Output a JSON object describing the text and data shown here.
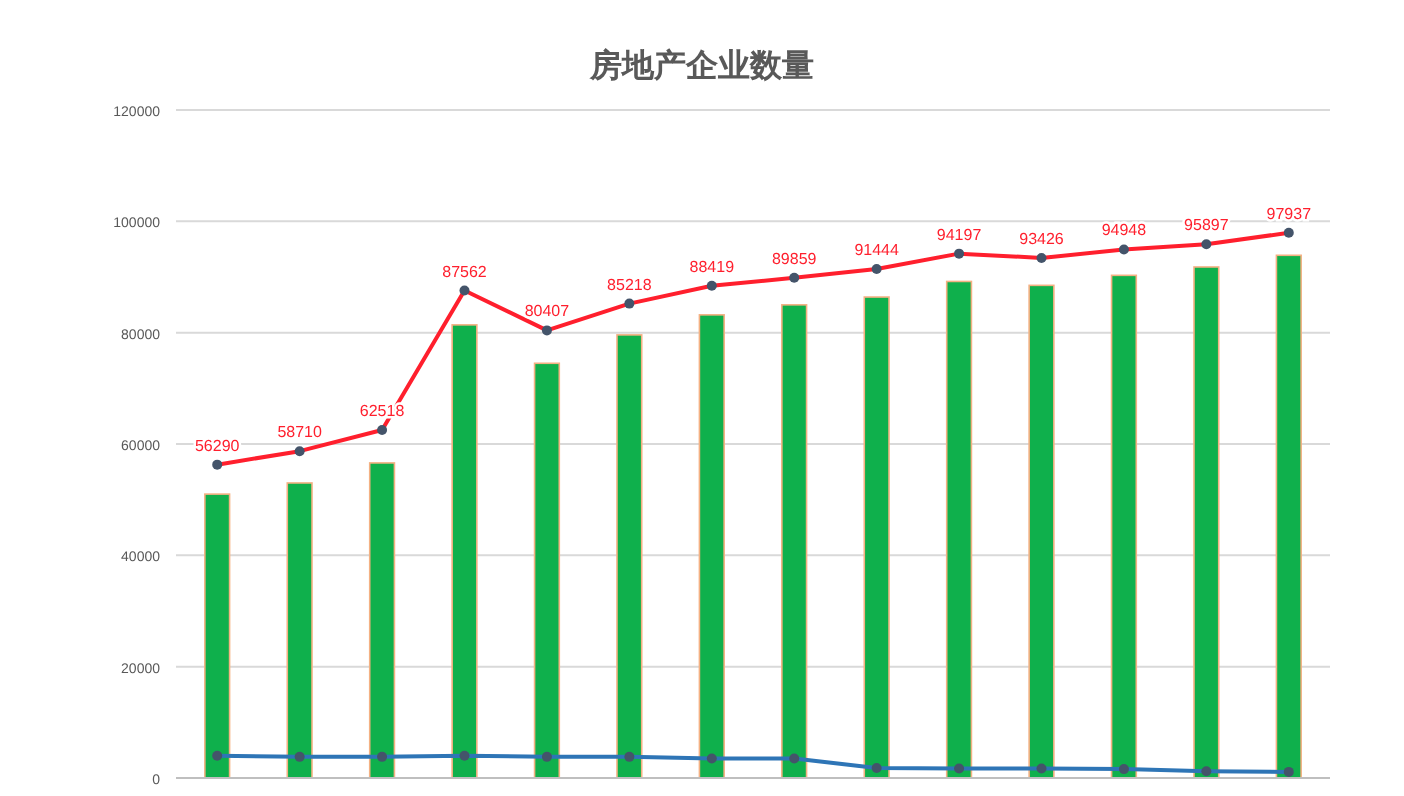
{
  "chart_data": {
    "type": "bar",
    "title": "房地产企业数量",
    "categories": [
      null,
      null,
      null,
      null,
      null,
      null,
      null,
      null,
      null,
      null,
      null,
      null,
      null,
      null
    ],
    "ylim": [
      0,
      120000
    ],
    "yticks": [
      0,
      20000,
      40000,
      60000,
      80000,
      100000,
      120000
    ],
    "grid": "y",
    "marker": "circle",
    "series": [
      {
        "color": "#0fb04c",
        "values": [
          51000,
          53000,
          56600,
          81400,
          74500,
          79600,
          83200,
          85000,
          86400,
          89200,
          88500,
          90300,
          91800,
          93900
        ]
      },
      {
        "type": "line",
        "color": "#ff1f2d",
        "values": [
          56290,
          58710,
          62518,
          87562,
          80407,
          85218,
          88419,
          89859,
          91444,
          94197,
          93426,
          94948,
          95897,
          97937
        ],
        "value_labels": [
          "56290",
          "58710",
          "62518",
          "87562",
          "80407",
          "85218",
          "88419",
          "89859",
          "91444",
          "94197",
          "93426",
          "94948",
          "95897",
          "97937"
        ]
      },
      {
        "type": "line",
        "color": "#2e75b6",
        "values": [
          4000,
          3800,
          3800,
          4000,
          3800,
          3800,
          3500,
          3500,
          1800,
          1700,
          1700,
          1600,
          1200,
          1100
        ]
      }
    ]
  }
}
